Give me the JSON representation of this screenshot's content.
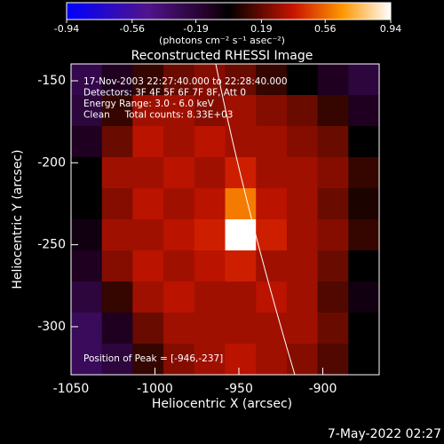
{
  "chart_data": {
    "type": "heatmap",
    "title": "Reconstructed RHESSI Image",
    "colorbar": {
      "clim": [
        -0.94,
        0.94
      ],
      "ticks": [
        -0.94,
        -0.56,
        -0.19,
        0.19,
        0.56,
        0.94
      ],
      "label": "(photons cm⁻² s⁻¹ asec⁻²)"
    },
    "x_label": "Heliocentric X (arcsec)",
    "y_label": "Heliocentric Y (arcsec)",
    "xlim": [
      -1050,
      -866.4
    ],
    "ylim": [
      -329.3,
      -139.7
    ],
    "xticks": [
      -1050,
      -1000,
      -950,
      -900
    ],
    "yticks": [
      -150,
      -200,
      -250,
      -300
    ],
    "annotations": [
      "17-Nov-2003 22:27:40.000 to 22:28:40.000",
      "Detectors: 3F 4F 5F 6F 7F 8F, Att 0",
      "Energy Range: 3.0 - 6.0 keV",
      "Clean     Total counts: 8.33E+03"
    ],
    "peak_label": "Position of Peak = [-946,-237]",
    "timestamp": "7-May-2022 02:27",
    "z": [
      [
        -0.25,
        -0.1,
        0.1,
        0.2,
        0.25,
        0.2,
        0.1,
        0.0,
        -0.1,
        -0.2
      ],
      [
        -0.2,
        0.1,
        0.3,
        0.3,
        0.25,
        0.3,
        0.25,
        0.2,
        0.1,
        -0.1
      ],
      [
        -0.1,
        0.2,
        0.35,
        0.3,
        0.35,
        0.3,
        0.3,
        0.25,
        0.2,
        0.0
      ],
      [
        0.0,
        0.3,
        0.3,
        0.35,
        0.3,
        0.4,
        0.3,
        0.3,
        0.25,
        0.1
      ],
      [
        0.0,
        0.25,
        0.35,
        0.3,
        0.35,
        0.6,
        0.35,
        0.3,
        0.2,
        0.05
      ],
      [
        -0.05,
        0.3,
        0.3,
        0.35,
        0.4,
        0.94,
        0.4,
        0.3,
        0.25,
        0.1
      ],
      [
        -0.1,
        0.25,
        0.35,
        0.3,
        0.35,
        0.4,
        0.3,
        0.3,
        0.2,
        0.0
      ],
      [
        -0.2,
        0.1,
        0.3,
        0.35,
        0.3,
        0.3,
        0.35,
        0.3,
        0.15,
        -0.05
      ],
      [
        -0.3,
        -0.1,
        0.2,
        0.3,
        0.3,
        0.3,
        0.3,
        0.3,
        0.2,
        0.0
      ],
      [
        -0.3,
        -0.2,
        0.1,
        0.25,
        0.3,
        0.35,
        0.3,
        0.25,
        0.15,
        0.0
      ]
    ]
  }
}
